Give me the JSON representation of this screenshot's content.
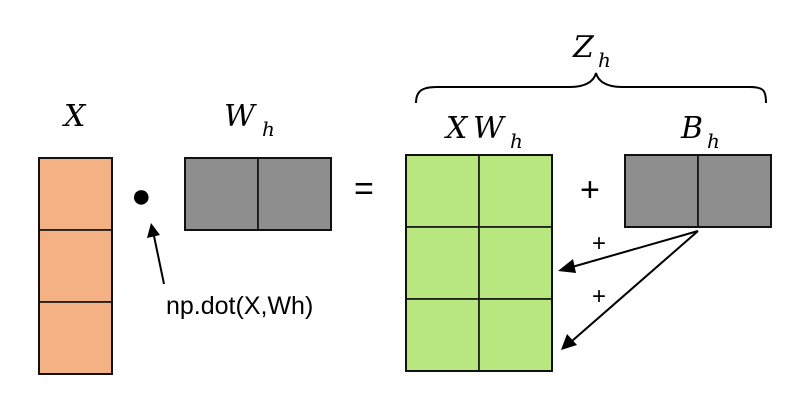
{
  "labels": {
    "x": "X",
    "w": "W",
    "w_sub": "h",
    "xw_prefix": "X",
    "xw_main": "W",
    "xw_sub": "h",
    "b": "B",
    "b_sub": "h",
    "z": "Z",
    "z_sub": "h"
  },
  "operators": {
    "dot": "●",
    "equals": "=",
    "plus": "+",
    "broadcast_plus_1": "+",
    "broadcast_plus_2": "+"
  },
  "annotation": {
    "code": "np.dot(X,Wh)"
  },
  "colors": {
    "x_fill": "#f4b183",
    "weight_fill": "#8e8e8e",
    "xw_fill": "#b8e67f",
    "stroke": "#111111",
    "background": "#ffffff"
  },
  "matrices": {
    "x": {
      "rows": 3,
      "cols": 1
    },
    "w": {
      "rows": 1,
      "cols": 2
    },
    "xw": {
      "rows": 3,
      "cols": 2
    },
    "b": {
      "rows": 1,
      "cols": 2
    }
  }
}
